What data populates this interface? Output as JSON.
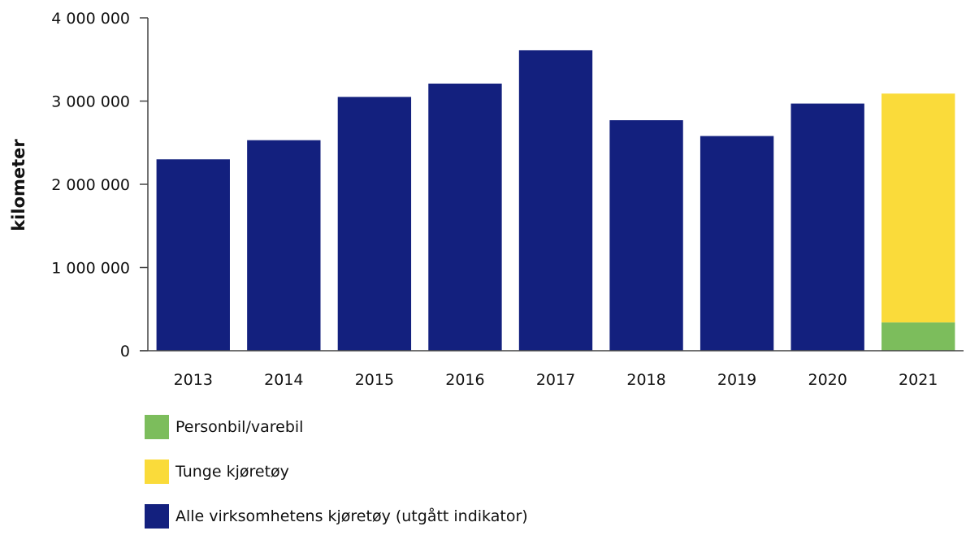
{
  "chart_data": {
    "type": "bar",
    "stacked": true,
    "title": "",
    "ylabel": "kilometer",
    "xlabel": "",
    "ylim": [
      0,
      4000000
    ],
    "yticks": [
      0,
      1000000,
      2000000,
      3000000,
      4000000
    ],
    "ytick_labels": [
      "0",
      "1 000 000",
      "2 000 000",
      "3 000 000",
      "4 000 000"
    ],
    "categories": [
      "2013",
      "2014",
      "2015",
      "2016",
      "2017",
      "2018",
      "2019",
      "2020",
      "2021"
    ],
    "series": [
      {
        "name": "Personbil/varebil",
        "color": "#7cbd5c",
        "values": [
          null,
          null,
          null,
          null,
          null,
          null,
          null,
          null,
          340000
        ]
      },
      {
        "name": "Tunge kjøretøy",
        "color": "#fadb3a",
        "values": [
          null,
          null,
          null,
          null,
          null,
          null,
          null,
          null,
          2750000
        ]
      },
      {
        "name": "Alle virksomhetens kjøretøy (utgått indikator)",
        "color": "#13207e",
        "values": [
          2300000,
          2530000,
          3050000,
          3210000,
          3610000,
          2770000,
          2580000,
          2970000,
          null
        ]
      }
    ],
    "legend_position": "bottom-left",
    "grid": false
  }
}
